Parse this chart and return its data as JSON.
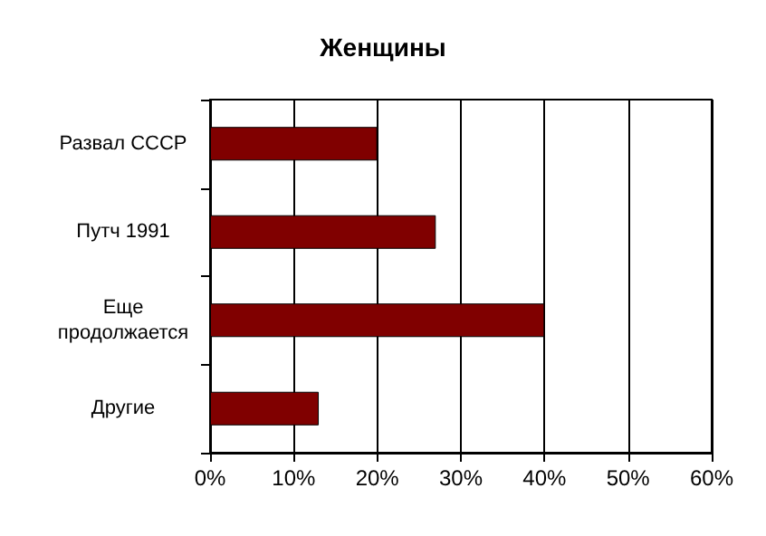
{
  "chart_data": {
    "type": "bar",
    "orientation": "horizontal",
    "title": "Женщины",
    "categories": [
      "Развал СССР",
      "Путч 1991",
      "Еще продолжается",
      "Другие"
    ],
    "values": [
      20,
      27,
      40,
      13
    ],
    "color": "#800000",
    "xlim": [
      0,
      60
    ],
    "xticks": [
      {
        "value": 0,
        "label": "0%"
      },
      {
        "value": 10,
        "label": "10%"
      },
      {
        "value": 20,
        "label": "20%"
      },
      {
        "value": 30,
        "label": "30%"
      },
      {
        "value": 40,
        "label": "40%"
      },
      {
        "value": 50,
        "label": "50%"
      },
      {
        "value": 60,
        "label": "60%"
      }
    ],
    "grid": "x"
  }
}
